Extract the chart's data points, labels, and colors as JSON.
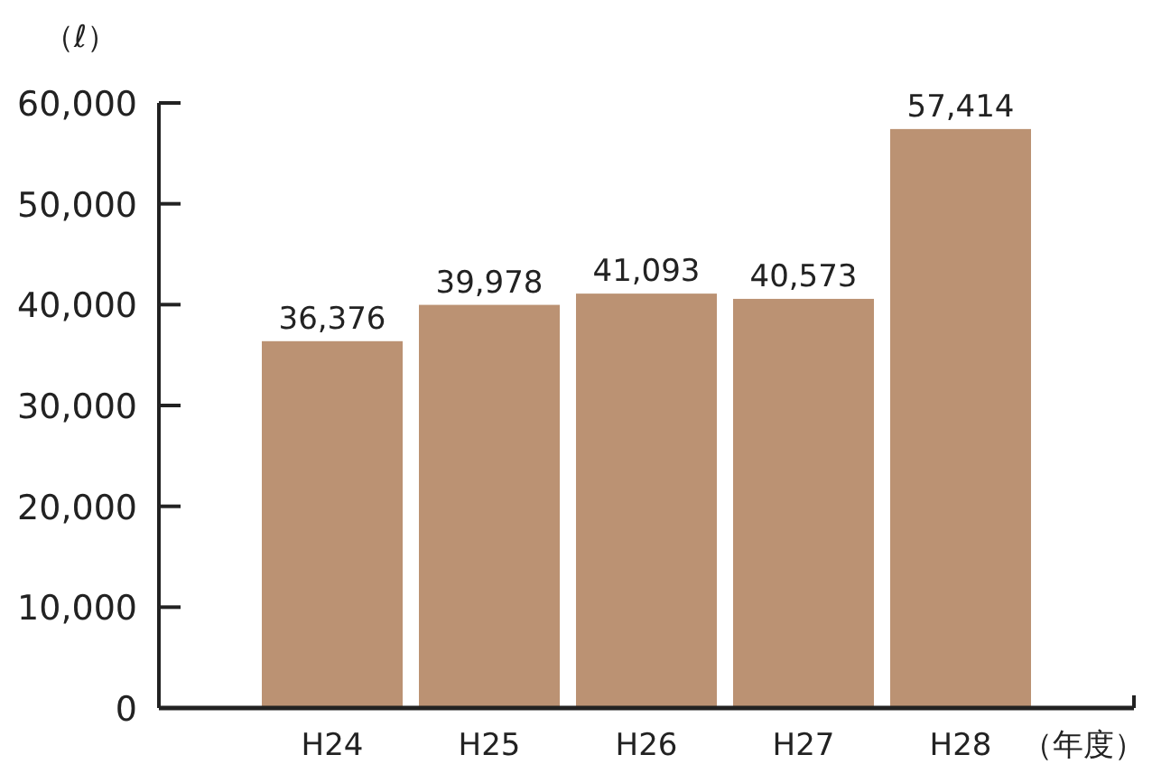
{
  "chart_data": {
    "type": "bar",
    "ylabel": "（ℓ）",
    "xlabel": "（年度）",
    "categories": [
      "H24",
      "H25",
      "H26",
      "H27",
      "H28"
    ],
    "values": [
      36376,
      39978,
      41093,
      40573,
      57414
    ],
    "value_labels": [
      "36,376",
      "39,978",
      "41,093",
      "40,573",
      "57,414"
    ],
    "color": "#bb9273",
    "ylim": [
      0,
      60000
    ],
    "yticks": [
      {
        "value": 0,
        "label": "0"
      },
      {
        "value": 10000,
        "label": "10,000"
      },
      {
        "value": 20000,
        "label": "20,000"
      },
      {
        "value": 30000,
        "label": "30,000"
      },
      {
        "value": 40000,
        "label": "40,000"
      },
      {
        "value": 50000,
        "label": "50,000"
      },
      {
        "value": 60000,
        "label": "60,000"
      }
    ],
    "grid": false
  }
}
